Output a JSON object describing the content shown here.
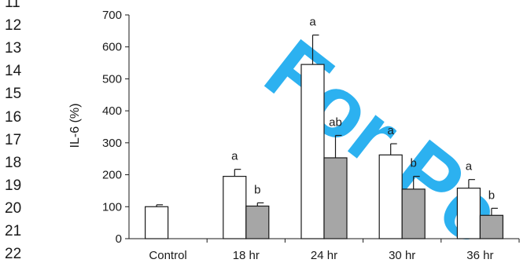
{
  "line_numbers": [
    "11",
    "12",
    "13",
    "14",
    "15",
    "16",
    "17",
    "18",
    "19",
    "20",
    "21",
    "22"
  ],
  "watermark": {
    "text": "For Pe",
    "color": "#16a9ef"
  },
  "chart_data": {
    "type": "bar",
    "ylabel": "IL-6 (%)",
    "xlabel": "",
    "title": "",
    "ylim": [
      0,
      700
    ],
    "yticks": [
      0,
      100,
      200,
      300,
      400,
      500,
      600,
      700
    ],
    "categories": [
      "Control",
      "18 hr",
      "24 hr",
      "30 hr",
      "36 hr"
    ],
    "series": [
      {
        "fill": "#ffffff",
        "values": [
          100,
          195,
          545,
          262,
          158
        ],
        "errors": [
          6,
          22,
          92,
          35,
          27
        ],
        "labels": [
          "",
          "a",
          "a",
          "a",
          "a"
        ]
      },
      {
        "fill": "#a6a6a6",
        "values": [
          null,
          102,
          253,
          155,
          73
        ],
        "errors": [
          null,
          10,
          70,
          40,
          22
        ],
        "labels": [
          "",
          "b",
          "ab",
          "b",
          "b"
        ]
      }
    ],
    "grid": false,
    "legend": "none"
  }
}
